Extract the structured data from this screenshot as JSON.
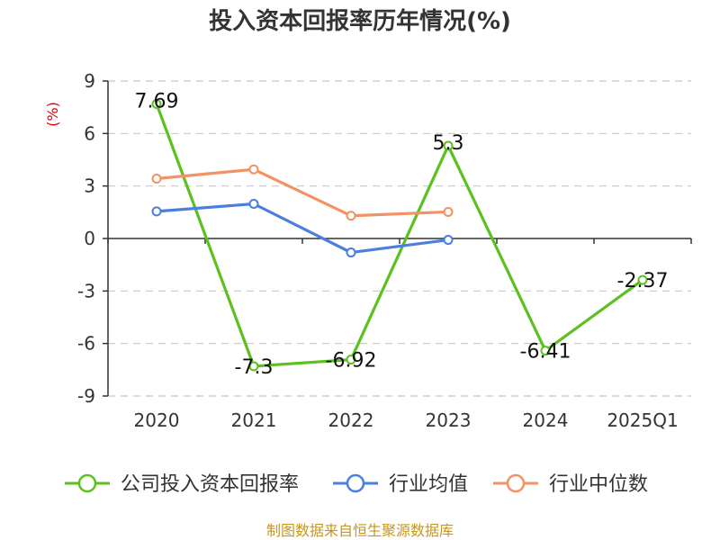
{
  "chart_data": {
    "type": "line",
    "title": "投入资本回报率历年情况(%)",
    "unit_label": "(%)",
    "categories": [
      "2020",
      "2021",
      "2022",
      "2023",
      "2024",
      "2025Q1"
    ],
    "ylim": [
      -9,
      9
    ],
    "yticks": [
      9,
      6,
      3,
      0,
      -3,
      -6,
      -9
    ],
    "grid": true,
    "legend_position": "bottom",
    "series": [
      {
        "name": "公司投入资本回报率",
        "color": "#5cc120",
        "values": [
          7.69,
          -7.3,
          -6.92,
          5.3,
          -6.41,
          -2.37
        ],
        "labels": [
          "7.69",
          "-7.3",
          "-6.92",
          "5.3",
          "-6.41",
          "-2.37"
        ]
      },
      {
        "name": "行业均值",
        "color": "#4b7fde",
        "values": [
          1.55,
          1.98,
          -0.8,
          -0.08,
          null,
          null
        ]
      },
      {
        "name": "行业中位数",
        "color": "#f39262",
        "values": [
          3.42,
          3.95,
          1.3,
          1.52,
          null,
          null
        ]
      }
    ]
  },
  "footer": {
    "source": "制图数据来自恒生聚源数据库"
  }
}
